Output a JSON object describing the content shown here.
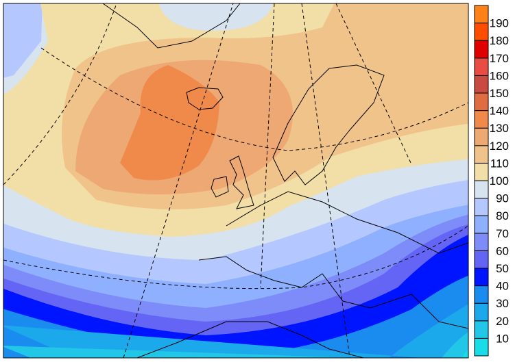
{
  "map": {
    "type": "filled contour map",
    "region": "Europe / North Atlantic",
    "graticule": "dashed"
  },
  "colorbar": {
    "levels": [
      "10",
      "20",
      "30",
      "40",
      "50",
      "60",
      "70",
      "80",
      "90",
      "100",
      "110",
      "120",
      "130",
      "140",
      "150",
      "160",
      "170",
      "180",
      "190"
    ],
    "colors": [
      "#19dce9",
      "#22c6e6",
      "#1ba9ec",
      "#1a8cf0",
      "#0015ff",
      "#6464f5",
      "#7d8cf8",
      "#8fb0ff",
      "#b4c8ff",
      "#d7e3ee",
      "#f2dfa7",
      "#f0c38a",
      "#eda874",
      "#f08a4b",
      "#e06c42",
      "#c84a40",
      "#e94b45",
      "#e00000",
      "#ff4d00",
      "#ff8017"
    ]
  }
}
